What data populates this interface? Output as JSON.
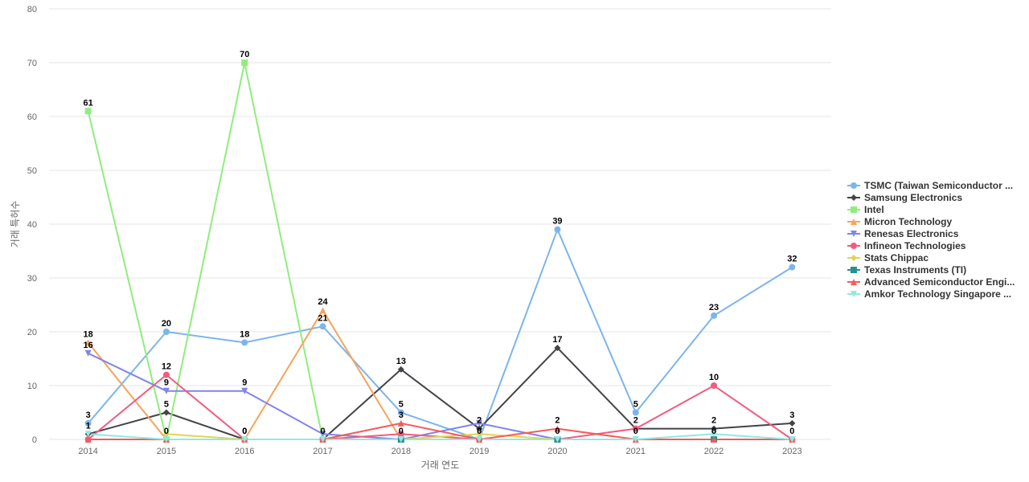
{
  "chart_data": {
    "type": "line",
    "xlabel": "거래 연도",
    "ylabel": "거래 특허수",
    "ylim": [
      0,
      80
    ],
    "yticks": [
      0,
      10,
      20,
      30,
      40,
      50,
      60,
      70,
      80
    ],
    "grid": true,
    "legend_position": "right",
    "categories": [
      "2014",
      "2015",
      "2016",
      "2017",
      "2018",
      "2019",
      "2020",
      "2021",
      "2022",
      "2023"
    ],
    "series": [
      {
        "name": "TSMC (Taiwan Semiconductor ...",
        "color": "#7cb5ec",
        "marker": "circle",
        "values": [
          3,
          20,
          18,
          21,
          5,
          0,
          39,
          5,
          23,
          32
        ],
        "labels": [
          true,
          true,
          true,
          true,
          true,
          false,
          true,
          true,
          true,
          true
        ]
      },
      {
        "name": "Samsung Electronics",
        "color": "#434348",
        "marker": "diamond",
        "values": [
          1,
          5,
          0,
          0,
          13,
          2,
          17,
          2,
          2,
          3
        ],
        "labels": [
          true,
          true,
          true,
          false,
          true,
          true,
          true,
          true,
          true,
          true
        ]
      },
      {
        "name": "Intel",
        "color": "#90ed7d",
        "marker": "square",
        "values": [
          61,
          0,
          70,
          0,
          null,
          null,
          null,
          null,
          null,
          null
        ],
        "labels": [
          true,
          false,
          true,
          false,
          false,
          false,
          false,
          false,
          false,
          false
        ]
      },
      {
        "name": "Micron Technology",
        "color": "#f7a35c",
        "marker": "triangle",
        "values": [
          18,
          0,
          0,
          24,
          0,
          0,
          null,
          null,
          null,
          null
        ],
        "labels": [
          true,
          false,
          false,
          true,
          false,
          false,
          false,
          false,
          false,
          false
        ]
      },
      {
        "name": "Renesas Electronics",
        "color": "#8085e9",
        "marker": "triangle-down",
        "values": [
          16,
          9,
          9,
          1,
          0,
          3,
          0,
          null,
          null,
          null
        ],
        "labels": [
          true,
          true,
          true,
          false,
          false,
          false,
          false,
          false,
          false,
          false
        ]
      },
      {
        "name": "Infineon Technologies",
        "color": "#f15c80",
        "marker": "circle",
        "values": [
          0,
          12,
          0,
          0,
          1,
          0,
          0,
          2,
          10,
          0
        ],
        "labels": [
          false,
          true,
          false,
          false,
          false,
          false,
          false,
          false,
          true,
          false
        ]
      },
      {
        "name": "Stats Chippac",
        "color": "#e4d354",
        "marker": "diamond",
        "values": [
          null,
          1,
          0,
          null,
          0,
          1,
          0,
          null,
          null,
          null
        ],
        "labels": [
          false,
          false,
          false,
          false,
          false,
          false,
          false,
          false,
          false,
          false
        ]
      },
      {
        "name": "Texas Instruments (TI)",
        "color": "#2b908f",
        "marker": "square",
        "values": [
          null,
          null,
          null,
          null,
          0,
          null,
          0,
          null,
          0,
          null
        ],
        "labels": [
          false,
          false,
          false,
          false,
          false,
          false,
          false,
          false,
          false,
          false
        ]
      },
      {
        "name": "Advanced Semiconductor Engi...",
        "color": "#f45b5b",
        "marker": "triangle",
        "values": [
          0,
          0,
          0,
          0,
          3,
          0,
          2,
          0,
          0,
          0
        ],
        "labels": [
          false,
          false,
          false,
          false,
          true,
          false,
          true,
          true,
          true,
          true
        ]
      },
      {
        "name": "Amkor Technology Singapore ...",
        "color": "#91e8e1",
        "marker": "triangle-down",
        "values": [
          1,
          0,
          0,
          0,
          0,
          0,
          0,
          0,
          1,
          0
        ],
        "labels": [
          false,
          true,
          true,
          true,
          true,
          true,
          true,
          false,
          false,
          false
        ]
      }
    ]
  }
}
